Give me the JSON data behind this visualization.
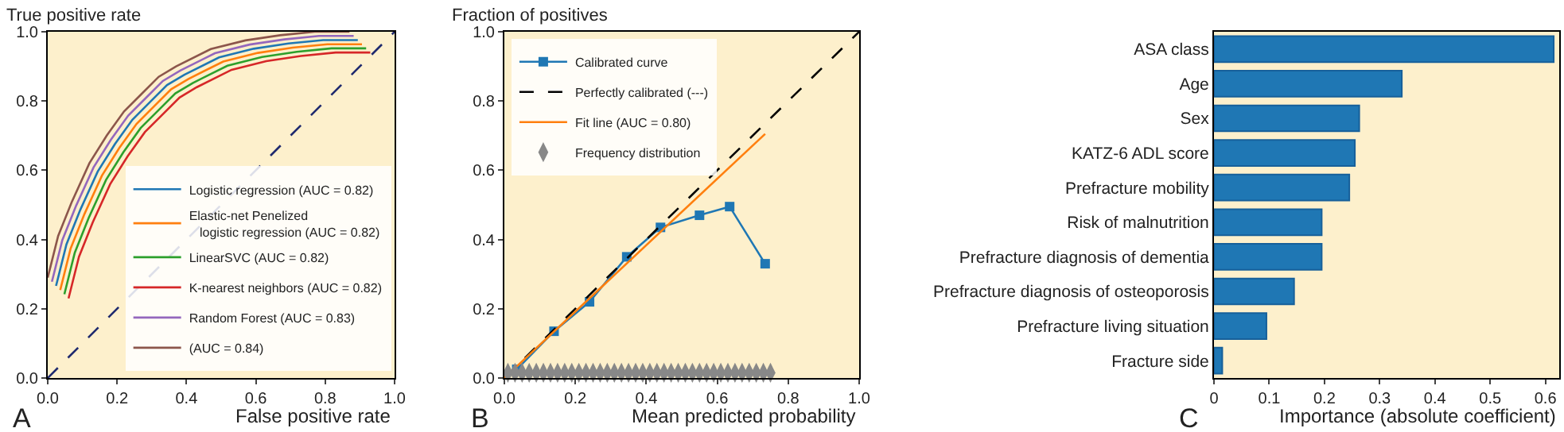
{
  "chart_data": [
    {
      "type": "line",
      "ylabel": "True positive rate",
      "xlabel": "False positive rate",
      "annotations": [
        "A"
      ],
      "legend": "bottom right",
      "xlim": [
        0,
        1
      ],
      "ylim": [
        0,
        1
      ],
      "xticks": [
        {
          "value": 0,
          "label": "0.0"
        },
        {
          "value": 0.2,
          "label": "0.2"
        },
        {
          "value": 0.4,
          "label": "0.4"
        },
        {
          "value": 0.6,
          "label": "0.6"
        },
        {
          "value": 0.8,
          "label": "0.8"
        },
        {
          "value": 1,
          "label": "1.0"
        }
      ],
      "yticks": [
        {
          "value": 0,
          "label": "0.0"
        },
        {
          "value": 0.2,
          "label": "0.2"
        },
        {
          "value": 0.4,
          "label": "0.4"
        },
        {
          "value": 0.6,
          "label": "0.6"
        },
        {
          "value": 0.8,
          "label": "0.8"
        },
        {
          "value": 1,
          "label": "1.0"
        }
      ],
      "series": [
        {
          "name": "Logistic regression (AUC = 0.82)",
          "color": "#1f77b4",
          "x": [
            0.024,
            0.034,
            0.054,
            0.094,
            0.144,
            0.194,
            0.244,
            0.294,
            0.344,
            0.394,
            0.494,
            0.594,
            0.694,
            0.794,
            0.894
          ],
          "values": [
            0.266,
            0.306,
            0.386,
            0.486,
            0.596,
            0.676,
            0.746,
            0.796,
            0.846,
            0.876,
            0.926,
            0.951,
            0.966,
            0.976,
            0.976
          ]
        },
        {
          "name": "Elastic-net Penelized logistic regression (AUC = 0.82)",
          "color": "#ff7f0e",
          "x": [
            0.036,
            0.046,
            0.066,
            0.106,
            0.156,
            0.206,
            0.256,
            0.306,
            0.356,
            0.406,
            0.506,
            0.606,
            0.706,
            0.806,
            0.906
          ],
          "values": [
            0.254,
            0.294,
            0.374,
            0.474,
            0.584,
            0.664,
            0.734,
            0.784,
            0.834,
            0.864,
            0.914,
            0.939,
            0.954,
            0.964,
            0.964
          ]
        },
        {
          "name": "LinearSVC (AUC = 0.82)",
          "color": "#2ca02c",
          "x": [
            0.048,
            0.058,
            0.078,
            0.118,
            0.168,
            0.218,
            0.268,
            0.318,
            0.368,
            0.418,
            0.518,
            0.618,
            0.718,
            0.818,
            0.918
          ],
          "values": [
            0.242,
            0.282,
            0.362,
            0.462,
            0.572,
            0.652,
            0.722,
            0.772,
            0.822,
            0.852,
            0.902,
            0.927,
            0.942,
            0.952,
            0.952
          ]
        },
        {
          "name": "K-nearest neighbors (AUC = 0.82)",
          "color": "#d62728",
          "x": [
            0.06,
            0.07,
            0.09,
            0.13,
            0.18,
            0.23,
            0.28,
            0.33,
            0.38,
            0.43,
            0.53,
            0.63,
            0.73,
            0.83,
            0.93
          ],
          "values": [
            0.23,
            0.27,
            0.35,
            0.45,
            0.56,
            0.64,
            0.71,
            0.76,
            0.81,
            0.84,
            0.89,
            0.915,
            0.93,
            0.94,
            0.94
          ]
        },
        {
          "name": "Random Forest (AUC = 0.83)",
          "color": "#9467bd",
          "x": [
            0.012,
            0.022,
            0.042,
            0.082,
            0.132,
            0.182,
            0.232,
            0.282,
            0.332,
            0.382,
            0.482,
            0.582,
            0.682,
            0.782,
            0.882
          ],
          "values": [
            0.278,
            0.318,
            0.398,
            0.498,
            0.608,
            0.688,
            0.758,
            0.808,
            0.858,
            0.888,
            0.938,
            0.963,
            0.978,
            0.988,
            0.988
          ]
        },
        {
          "name": "(AUC = 0.84)",
          "color": "#8c564b",
          "x": [
            0,
            0.01,
            0.03,
            0.07,
            0.12,
            0.17,
            0.22,
            0.27,
            0.32,
            0.37,
            0.47,
            0.57,
            0.67,
            0.77,
            0.87
          ],
          "values": [
            0.29,
            0.33,
            0.41,
            0.51,
            0.62,
            0.7,
            0.77,
            0.82,
            0.87,
            0.9,
            0.95,
            0.975,
            0.99,
            1,
            1
          ]
        },
        {
          "color": "#1f2a6e",
          "line_style": "dashed",
          "x": [
            0,
            1
          ],
          "values": [
            0,
            1
          ]
        }
      ]
    },
    {
      "type": "line",
      "ylabel": "Fraction of positives",
      "xlabel": "Mean predicted probability",
      "annotations": [
        "B"
      ],
      "legend": "top left",
      "xlim": [
        0,
        1
      ],
      "ylim": [
        0,
        1
      ],
      "xticks": [
        {
          "value": 0,
          "label": "0.0"
        },
        {
          "value": 0.2,
          "label": "0.2"
        },
        {
          "value": 0.4,
          "label": "0.4"
        },
        {
          "value": 0.6,
          "label": "0.6"
        },
        {
          "value": 0.8,
          "label": "0.8"
        },
        {
          "value": 1,
          "label": "1.0"
        }
      ],
      "yticks": [
        {
          "value": 0,
          "label": "0.0"
        },
        {
          "value": 0.2,
          "label": "0.2"
        },
        {
          "value": 0.4,
          "label": "0.4"
        },
        {
          "value": 0.6,
          "label": "0.6"
        },
        {
          "value": 0.8,
          "label": "0.8"
        },
        {
          "value": 1,
          "label": "1.0"
        }
      ],
      "series": [
        {
          "name": "Calibrated curve",
          "color": "#1f77b4",
          "marker": "square",
          "x": [
            0.035,
            0.14,
            0.24,
            0.345,
            0.44,
            0.55,
            0.635,
            0.735
          ],
          "values": [
            0.025,
            0.135,
            0.22,
            0.35,
            0.435,
            0.47,
            0.495,
            0.33
          ]
        },
        {
          "name": "Perfectly calibrated (---)",
          "color": "#000000",
          "line_style": "dashed",
          "x": [
            0,
            1
          ],
          "values": [
            0,
            1
          ]
        },
        {
          "name": "Fit line (AUC = 0.80)",
          "color": "#ff7f0e",
          "x": [
            0,
            0.735
          ],
          "values": [
            0,
            0.705
          ]
        },
        {
          "name": "Frequency distribution",
          "type": "scatter",
          "color": "#888888",
          "x": [
            0.01,
            0.03,
            0.05,
            0.07,
            0.09,
            0.11,
            0.13,
            0.15,
            0.17,
            0.19,
            0.21,
            0.23,
            0.25,
            0.27,
            0.29,
            0.31,
            0.33,
            0.35,
            0.37,
            0.39,
            0.41,
            0.43,
            0.45,
            0.47,
            0.49,
            0.51,
            0.53,
            0.55,
            0.57,
            0.59,
            0.61,
            0.63,
            0.65,
            0.67,
            0.69,
            0.71,
            0.73,
            0.75
          ],
          "values": [
            0.015,
            0.015,
            0.015,
            0.015,
            0.015,
            0.015,
            0.015,
            0.015,
            0.015,
            0.015,
            0.015,
            0.015,
            0.015,
            0.015,
            0.015,
            0.015,
            0.015,
            0.015,
            0.015,
            0.015,
            0.015,
            0.015,
            0.015,
            0.015,
            0.015,
            0.015,
            0.015,
            0.015,
            0.015,
            0.015,
            0.015,
            0.015,
            0.015,
            0.015,
            0.015,
            0.015,
            0.015,
            0.015
          ]
        }
      ]
    },
    {
      "type": "bar",
      "orientation": "horizontal",
      "xlabel": "Importance (absolute coefficient)",
      "annotations": [
        "C"
      ],
      "color": "#1f77b4",
      "xlim": [
        0,
        0.625
      ],
      "xticks": [
        0,
        0.1,
        0.2,
        0.3,
        0.4,
        0.5,
        0.6
      ],
      "categories": [
        "ASA class",
        "Age",
        "Sex",
        "KATZ-6 ADL score",
        "Prefracture mobility",
        "Risk of malnutrition",
        "Prefracture diagnosis of dementia",
        "Prefracture diagnosis of osteoporosis",
        "Prefracture living situation",
        "Fracture side"
      ],
      "values": [
        0.615,
        0.34,
        0.263,
        0.255,
        0.245,
        0.195,
        0.195,
        0.145,
        0.095,
        0.015
      ]
    }
  ]
}
